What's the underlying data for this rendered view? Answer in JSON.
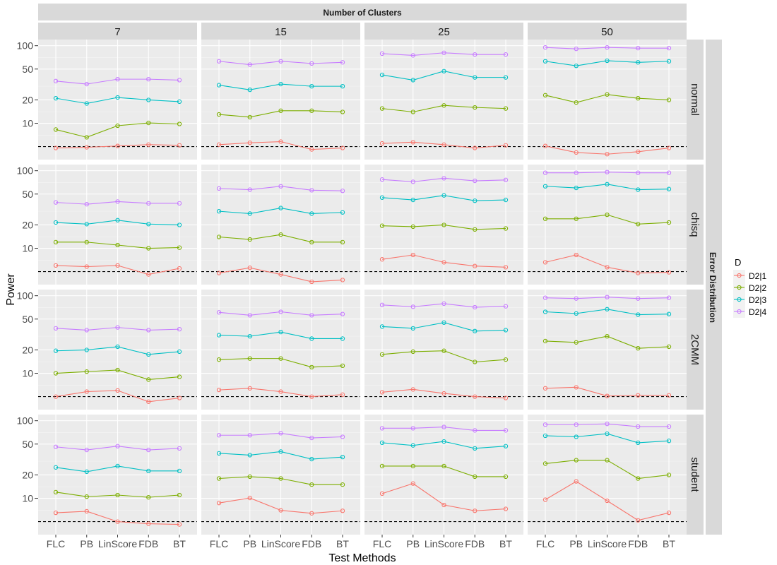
{
  "chart_data": {
    "type": "line",
    "facet": "grid",
    "title": "",
    "top_strip_title": "Number of Clusters",
    "right_strip_title": "Error Distribution",
    "xlabel": "Test Methods",
    "ylabel": "Power",
    "y_scale": "log10",
    "ylim": [
      3.4,
      120
    ],
    "y_ticks": [
      10,
      20,
      50,
      100
    ],
    "reference_line": 5,
    "categories": [
      "FLC",
      "PB",
      "LinScore",
      "FDB",
      "BT"
    ],
    "columns": [
      "7",
      "15",
      "25",
      "50"
    ],
    "rows": [
      "normal",
      "chisq",
      "2CMM",
      "student"
    ],
    "legend": {
      "title": "D",
      "position": "right",
      "entries": [
        {
          "name": "D2|1",
          "color": "#F8766D"
        },
        {
          "name": "D2|2",
          "color": "#7CAE00"
        },
        {
          "name": "D2|3",
          "color": "#00BFC4"
        },
        {
          "name": "D2|4",
          "color": "#C77CFF"
        }
      ]
    },
    "series_colors": [
      "#F8766D",
      "#7CAE00",
      "#00BFC4",
      "#C77CFF"
    ],
    "panels": [
      {
        "row": "normal",
        "col": "7",
        "series": [
          {
            "name": "D2|1",
            "values": [
              4.8,
              4.9,
              5.1,
              5.3,
              5.2
            ]
          },
          {
            "name": "D2|2",
            "values": [
              8.3,
              6.6,
              9.3,
              10.1,
              9.8
            ]
          },
          {
            "name": "D2|3",
            "values": [
              21,
              18,
              21.5,
              20,
              19
            ]
          },
          {
            "name": "D2|4",
            "values": [
              35,
              32,
              37,
              37,
              36
            ]
          }
        ]
      },
      {
        "row": "normal",
        "col": "15",
        "series": [
          {
            "name": "D2|1",
            "values": [
              5.3,
              5.6,
              5.8,
              4.6,
              4.8
            ]
          },
          {
            "name": "D2|2",
            "values": [
              13,
              12,
              14.5,
              14.5,
              14
            ]
          },
          {
            "name": "D2|3",
            "values": [
              31,
              27,
              32,
              30,
              30
            ]
          },
          {
            "name": "D2|4",
            "values": [
              63,
              57,
              63,
              59,
              61
            ]
          }
        ]
      },
      {
        "row": "normal",
        "col": "25",
        "series": [
          {
            "name": "D2|1",
            "values": [
              5.5,
              5.7,
              5.3,
              4.8,
              5.2
            ]
          },
          {
            "name": "D2|2",
            "values": [
              15.5,
              14,
              17,
              16,
              15.5
            ]
          },
          {
            "name": "D2|3",
            "values": [
              42,
              36,
              47,
              39,
              39
            ]
          },
          {
            "name": "D2|4",
            "values": [
              79,
              75,
              81,
              77,
              77
            ]
          }
        ]
      },
      {
        "row": "normal",
        "col": "50",
        "series": [
          {
            "name": "D2|1",
            "values": [
              5.1,
              4.2,
              4.0,
              4.3,
              4.8
            ]
          },
          {
            "name": "D2|2",
            "values": [
              23,
              18.5,
              23.5,
              21,
              20
            ]
          },
          {
            "name": "D2|3",
            "values": [
              63,
              55,
              64,
              61,
              63
            ]
          },
          {
            "name": "D2|4",
            "values": [
              95,
              91,
              95,
              93,
              93
            ]
          }
        ]
      },
      {
        "row": "chisq",
        "col": "7",
        "series": [
          {
            "name": "D2|1",
            "values": [
              6.0,
              5.8,
              6.0,
              4.6,
              5.5
            ]
          },
          {
            "name": "D2|2",
            "values": [
              12,
              12,
              11,
              10,
              10.2
            ]
          },
          {
            "name": "D2|3",
            "values": [
              21.5,
              20.5,
              23,
              20.5,
              20
            ]
          },
          {
            "name": "D2|4",
            "values": [
              39,
              37,
              40,
              38,
              38
            ]
          }
        ]
      },
      {
        "row": "chisq",
        "col": "15",
        "series": [
          {
            "name": "D2|1",
            "values": [
              4.8,
              5.6,
              4.6,
              3.7,
              3.9
            ]
          },
          {
            "name": "D2|2",
            "values": [
              14,
              13,
              15,
              12,
              12
            ]
          },
          {
            "name": "D2|3",
            "values": [
              30,
              28,
              33,
              28,
              29
            ]
          },
          {
            "name": "D2|4",
            "values": [
              59,
              57,
              63,
              56,
              55
            ]
          }
        ]
      },
      {
        "row": "chisq",
        "col": "25",
        "series": [
          {
            "name": "D2|1",
            "values": [
              7.2,
              8.2,
              6.6,
              5.9,
              5.7
            ]
          },
          {
            "name": "D2|2",
            "values": [
              19.5,
              19,
              20,
              17.5,
              18
            ]
          },
          {
            "name": "D2|3",
            "values": [
              45,
              42,
              48,
              41,
              42
            ]
          },
          {
            "name": "D2|4",
            "values": [
              77,
              72,
              80,
              74,
              76
            ]
          }
        ]
      },
      {
        "row": "chisq",
        "col": "50",
        "series": [
          {
            "name": "D2|1",
            "values": [
              6.6,
              8.2,
              5.7,
              4.8,
              4.9
            ]
          },
          {
            "name": "D2|2",
            "values": [
              24,
              24,
              27,
              20.5,
              21.5
            ]
          },
          {
            "name": "D2|3",
            "values": [
              63,
              60,
              67,
              57,
              58
            ]
          },
          {
            "name": "D2|4",
            "values": [
              94,
              94,
              96,
              94,
              94
            ]
          }
        ]
      },
      {
        "row": "2CMM",
        "col": "7",
        "series": [
          {
            "name": "D2|1",
            "values": [
              5.0,
              5.8,
              6.0,
              4.3,
              4.8
            ]
          },
          {
            "name": "D2|2",
            "values": [
              10,
              10.5,
              11,
              8.3,
              9
            ]
          },
          {
            "name": "D2|3",
            "values": [
              19.5,
              20,
              22,
              17.5,
              19
            ]
          },
          {
            "name": "D2|4",
            "values": [
              38,
              36,
              39,
              36,
              37
            ]
          }
        ]
      },
      {
        "row": "2CMM",
        "col": "15",
        "series": [
          {
            "name": "D2|1",
            "values": [
              6.1,
              6.4,
              5.8,
              5.0,
              5.3
            ]
          },
          {
            "name": "D2|2",
            "values": [
              15,
              15.5,
              15.5,
              12,
              12.5
            ]
          },
          {
            "name": "D2|3",
            "values": [
              31,
              30,
              34,
              28,
              28
            ]
          },
          {
            "name": "D2|4",
            "values": [
              61,
              56,
              62,
              56,
              58
            ]
          }
        ]
      },
      {
        "row": "2CMM",
        "col": "25",
        "series": [
          {
            "name": "D2|1",
            "values": [
              5.7,
              6.2,
              5.5,
              5.0,
              4.8
            ]
          },
          {
            "name": "D2|2",
            "values": [
              17.5,
              19,
              19.5,
              14,
              15
            ]
          },
          {
            "name": "D2|3",
            "values": [
              40,
              38,
              45,
              35,
              36
            ]
          },
          {
            "name": "D2|4",
            "values": [
              76,
              72,
              79,
              71,
              73
            ]
          }
        ]
      },
      {
        "row": "2CMM",
        "col": "50",
        "series": [
          {
            "name": "D2|1",
            "values": [
              6.4,
              6.6,
              5.1,
              5.2,
              5.2
            ]
          },
          {
            "name": "D2|2",
            "values": [
              26,
              25,
              30,
              21,
              22
            ]
          },
          {
            "name": "D2|3",
            "values": [
              62,
              59,
              67,
              57,
              58
            ]
          },
          {
            "name": "D2|4",
            "values": [
              94,
              92,
              96,
              92,
              94
            ]
          }
        ]
      },
      {
        "row": "student",
        "col": "7",
        "series": [
          {
            "name": "D2|1",
            "values": [
              6.5,
              6.8,
              5.0,
              4.7,
              4.6
            ]
          },
          {
            "name": "D2|2",
            "values": [
              12,
              10.5,
              11,
              10.3,
              11
            ]
          },
          {
            "name": "D2|3",
            "values": [
              25,
              22,
              26,
              22.5,
              22.5
            ]
          },
          {
            "name": "D2|4",
            "values": [
              46,
              42,
              47,
              42,
              44
            ]
          }
        ]
      },
      {
        "row": "student",
        "col": "15",
        "series": [
          {
            "name": "D2|1",
            "values": [
              8.7,
              10.1,
              7.0,
              6.4,
              6.9
            ]
          },
          {
            "name": "D2|2",
            "values": [
              18,
              19,
              18,
              15,
              15
            ]
          },
          {
            "name": "D2|3",
            "values": [
              38,
              36,
              40,
              32,
              34
            ]
          },
          {
            "name": "D2|4",
            "values": [
              65,
              65,
              69,
              60,
              62
            ]
          }
        ]
      },
      {
        "row": "student",
        "col": "25",
        "series": [
          {
            "name": "D2|1",
            "values": [
              11.5,
              15.5,
              8.2,
              6.9,
              7.3
            ]
          },
          {
            "name": "D2|2",
            "values": [
              26,
              26,
              26,
              19,
              19
            ]
          },
          {
            "name": "D2|3",
            "values": [
              52,
              48,
              54,
              44,
              47
            ]
          },
          {
            "name": "D2|4",
            "values": [
              80,
              80,
              83,
              75,
              75
            ]
          }
        ]
      },
      {
        "row": "student",
        "col": "50",
        "series": [
          {
            "name": "D2|1",
            "values": [
              9.6,
              16.5,
              9.3,
              5.2,
              6.5
            ]
          },
          {
            "name": "D2|2",
            "values": [
              28,
              31,
              31,
              18,
              20
            ]
          },
          {
            "name": "D2|3",
            "values": [
              64,
              62,
              68,
              52,
              55
            ]
          },
          {
            "name": "D2|4",
            "values": [
              89,
              89,
              91,
              84,
              84
            ]
          }
        ]
      }
    ]
  }
}
